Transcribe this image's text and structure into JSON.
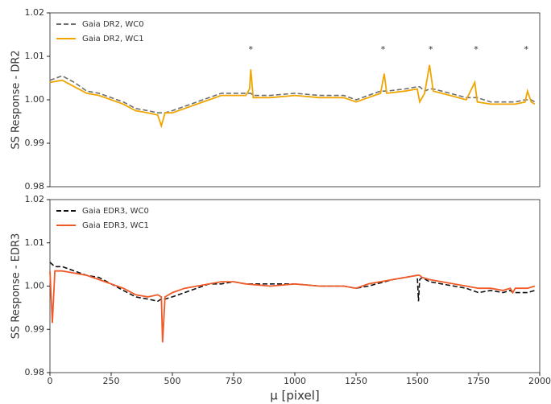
{
  "chart_data": [
    {
      "type": "line",
      "ylabel": "SS Response - DR2",
      "legend": "upper left",
      "grid": false,
      "xlim": [
        0,
        2000
      ],
      "ylim": [
        0.98,
        1.02
      ],
      "yticks": [
        0.98,
        0.99,
        {
          "value": 1.0,
          "label": "1.00"
        },
        1.01,
        1.02
      ],
      "x": [
        0,
        50,
        100,
        150,
        200,
        250,
        300,
        350,
        400,
        440,
        455,
        470,
        500,
        550,
        600,
        650,
        700,
        750,
        800,
        815,
        820,
        830,
        900,
        1000,
        1100,
        1200,
        1250,
        1300,
        1350,
        1365,
        1375,
        1450,
        1500,
        1510,
        1530,
        1550,
        1565,
        1600,
        1700,
        1735,
        1745,
        1800,
        1900,
        1940,
        1950,
        1965,
        1980
      ],
      "series": [
        {
          "name": "Gaia DR2, WC0",
          "color": "#6e6e6e",
          "dashed": true,
          "values": [
            1.0045,
            1.0055,
            1.004,
            1.002,
            1.0015,
            1.0005,
            0.9995,
            0.998,
            0.9975,
            0.997,
            0.997,
            0.997,
            0.9975,
            0.9985,
            0.9995,
            1.0005,
            1.0015,
            1.0015,
            1.0015,
            1.0015,
            1.0015,
            1.001,
            1.001,
            1.0015,
            1.001,
            1.001,
            1.0,
            1.001,
            1.002,
            1.002,
            1.002,
            1.0025,
            1.003,
            1.003,
            1.002,
            1.0025,
            1.0025,
            1.002,
            1.0005,
            1.0005,
            1.0005,
            0.9995,
            0.9995,
            1.0,
            1.0,
            1.0,
            0.9995
          ]
        },
        {
          "name": "Gaia DR2, WC1",
          "color": "#f0a500",
          "dashed": false,
          "values": [
            1.004,
            1.0045,
            1.003,
            1.0015,
            1.001,
            1.0,
            0.999,
            0.9975,
            0.997,
            0.9965,
            0.994,
            0.997,
            0.997,
            0.998,
            0.999,
            1.0,
            1.001,
            1.001,
            1.001,
            1.0025,
            1.007,
            1.0005,
            1.0005,
            1.001,
            1.0005,
            1.0005,
            0.9995,
            1.0005,
            1.0015,
            1.006,
            1.0015,
            1.002,
            1.0025,
            0.9995,
            1.0015,
            1.008,
            1.002,
            1.0015,
            1.0,
            1.004,
            0.9995,
            0.999,
            0.999,
            0.9995,
            1.002,
            0.9995,
            0.999
          ]
        }
      ],
      "annotations": [
        {
          "text": "*",
          "x": 820,
          "y": 1.0115
        },
        {
          "text": "*",
          "x": 1360,
          "y": 1.0115
        },
        {
          "text": "*",
          "x": 1555,
          "y": 1.0115
        },
        {
          "text": "*",
          "x": 1740,
          "y": 1.0115
        },
        {
          "text": "*",
          "x": 1945,
          "y": 1.0115
        }
      ]
    },
    {
      "type": "line",
      "ylabel": "SS Response - EDR3",
      "xlabel": "μ [pixel]",
      "legend": "upper left",
      "grid": false,
      "xlim": [
        0,
        2000
      ],
      "ylim": [
        0.98,
        1.02
      ],
      "xticks": [
        0,
        250,
        500,
        750,
        1000,
        1250,
        1500,
        1750,
        2000
      ],
      "yticks": [
        0.98,
        0.99,
        {
          "value": 1.0,
          "label": "1.00"
        },
        1.01,
        1.02
      ],
      "x": [
        0,
        10,
        20,
        50,
        100,
        150,
        200,
        250,
        300,
        350,
        400,
        440,
        455,
        460,
        470,
        500,
        550,
        600,
        650,
        700,
        750,
        800,
        900,
        1000,
        1100,
        1200,
        1250,
        1300,
        1400,
        1500,
        1505,
        1510,
        1520,
        1550,
        1600,
        1700,
        1750,
        1800,
        1850,
        1880,
        1890,
        1900,
        1950,
        1980
      ],
      "series": [
        {
          "name": "Gaia EDR3, WC0",
          "color": "#111111",
          "dashed": true,
          "values": [
            1.0055,
            1.005,
            1.0045,
            1.0045,
            1.0035,
            1.0025,
            1.002,
            1.0005,
            0.999,
            0.9975,
            0.997,
            0.9965,
            0.997,
            0.997,
            0.997,
            0.9975,
            0.9985,
            0.9995,
            1.0005,
            1.0005,
            1.001,
            1.0005,
            1.0005,
            1.0005,
            1.0,
            1.0,
            0.9995,
            1.0,
            1.0015,
            1.0025,
            0.9965,
            1.0015,
            1.002,
            1.001,
            1.0005,
            0.9995,
            0.9985,
            0.999,
            0.9985,
            0.999,
            0.9985,
            0.9985,
            0.9985,
            0.999
          ]
        },
        {
          "name": "Gaia EDR3, WC1",
          "color": "#f05a28",
          "dashed": false,
          "values": [
            1.0035,
            0.9915,
            1.0035,
            1.0035,
            1.003,
            1.0025,
            1.0015,
            1.0005,
            0.9995,
            0.998,
            0.9975,
            0.998,
            0.9975,
            0.987,
            0.9975,
            0.9985,
            0.9995,
            1.0,
            1.0005,
            1.001,
            1.001,
            1.0005,
            1.0,
            1.0005,
            1.0,
            1.0,
            0.9995,
            1.0005,
            1.0015,
            1.0025,
            1.0025,
            1.0025,
            1.002,
            1.0015,
            1.001,
            1.0,
            0.9995,
            0.9995,
            0.999,
            0.9995,
            0.9985,
            0.9995,
            0.9995,
            1.0
          ]
        }
      ]
    }
  ]
}
